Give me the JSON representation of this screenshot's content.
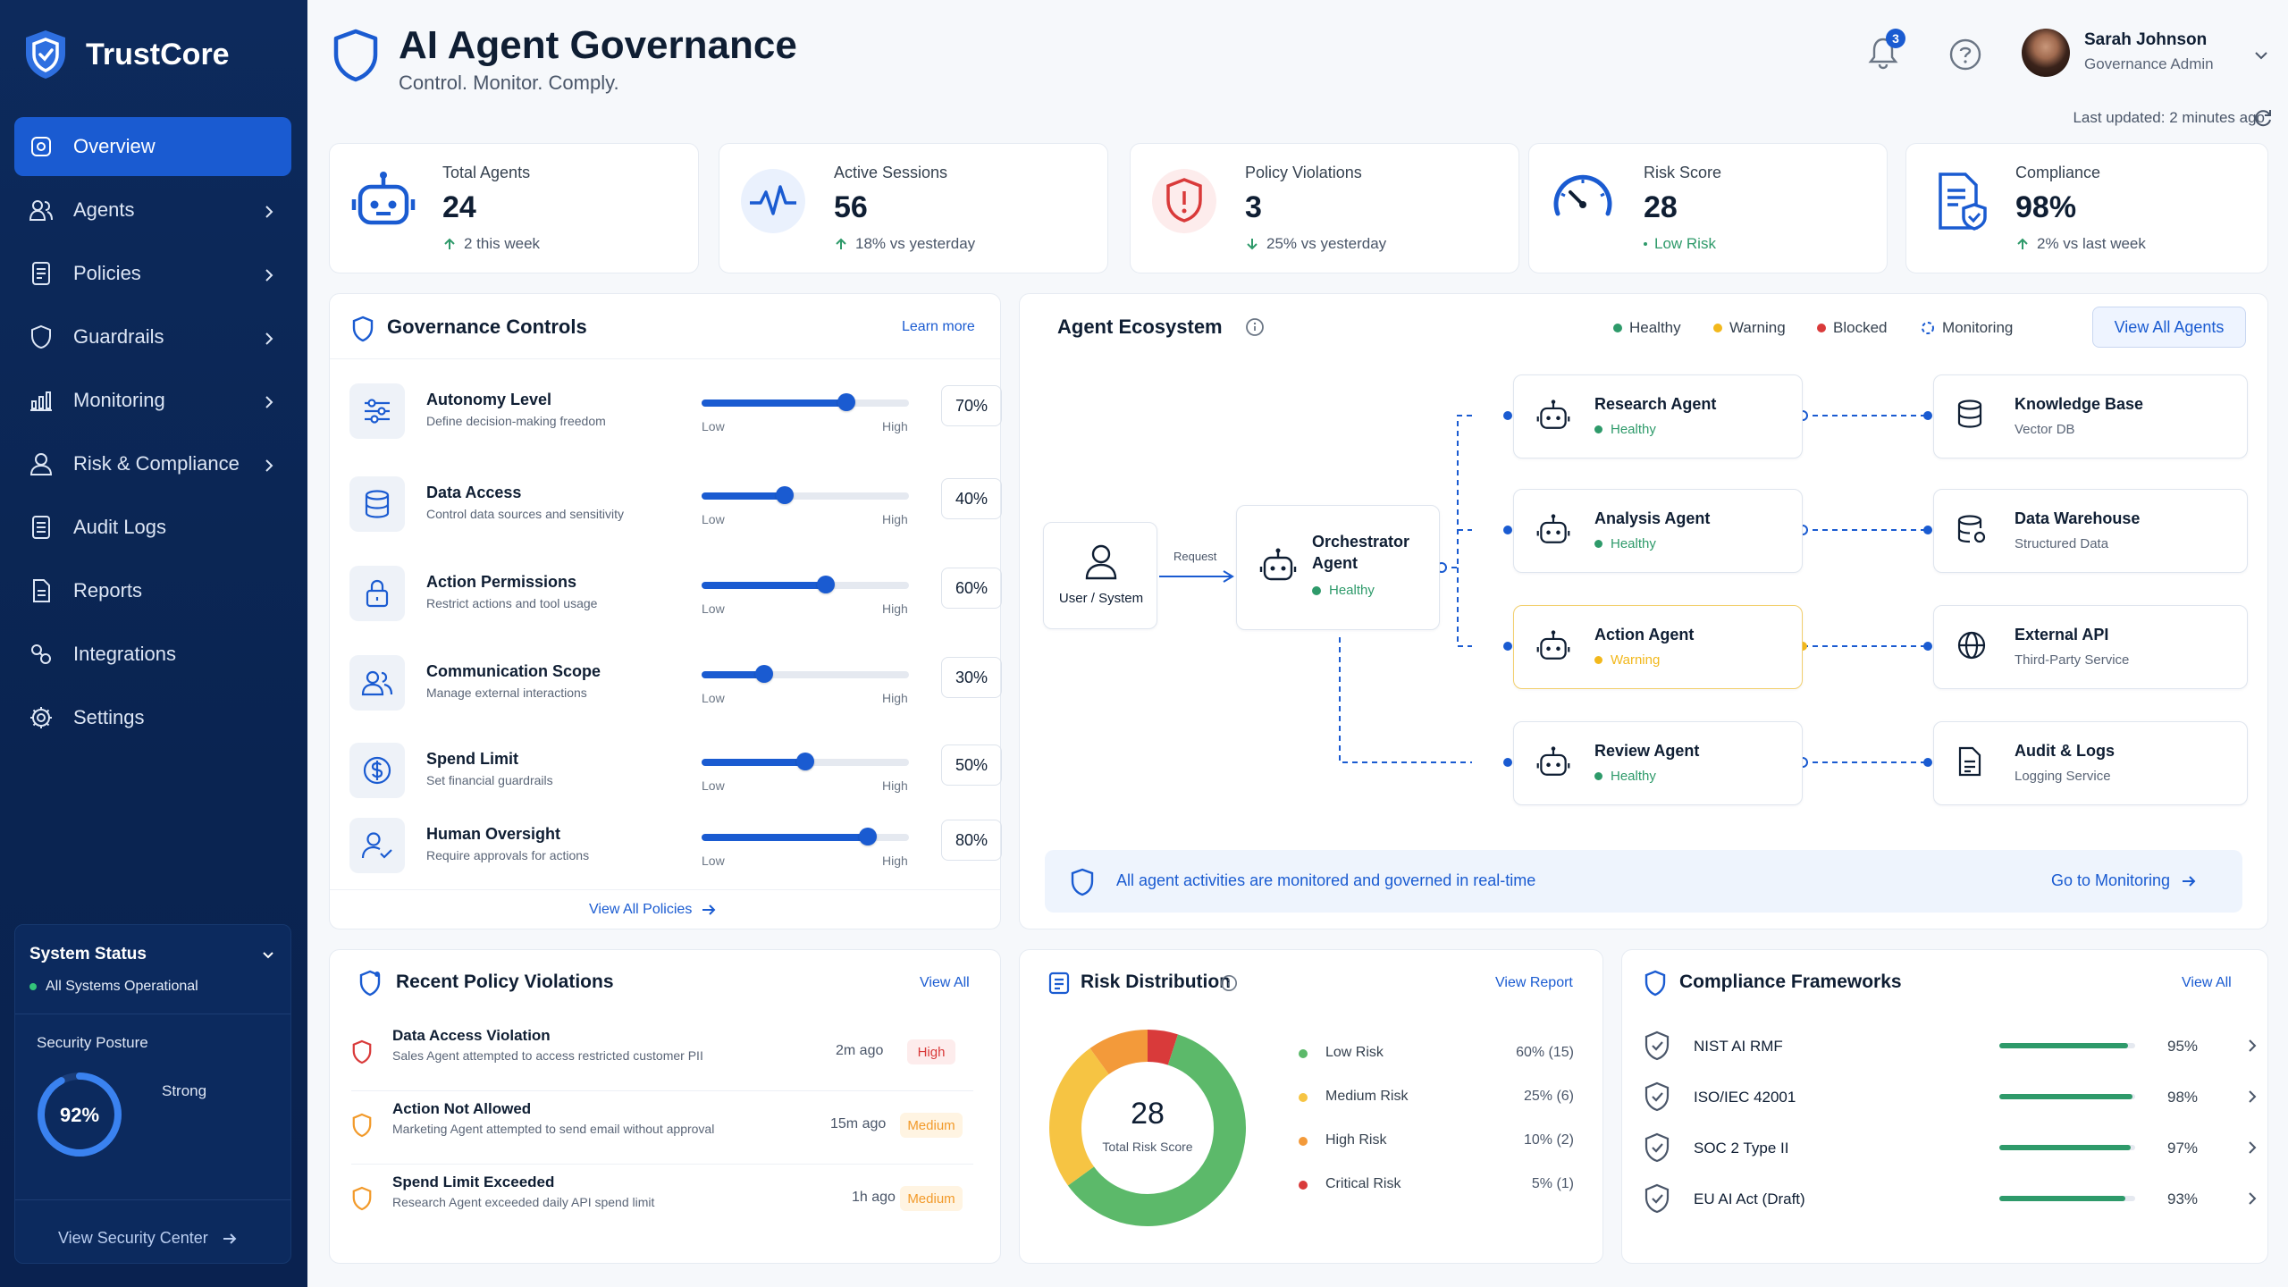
{
  "app": {
    "name": "TrustCore"
  },
  "nav": [
    {
      "label": "Overview",
      "icon": "overview-icon",
      "active": true,
      "has_children": false
    },
    {
      "label": "Agents",
      "icon": "agents-icon",
      "has_children": true
    },
    {
      "label": "Policies",
      "icon": "policies-icon",
      "has_children": true
    },
    {
      "label": "Guardrails",
      "icon": "guardrails-icon",
      "has_children": true
    },
    {
      "label": "Monitoring",
      "icon": "monitoring-icon",
      "has_children": true
    },
    {
      "label": "Risk & Compliance",
      "icon": "risk-icon",
      "has_children": true
    },
    {
      "label": "Audit Logs",
      "icon": "audit-icon",
      "has_children": false
    },
    {
      "label": "Reports",
      "icon": "reports-icon",
      "has_children": false
    },
    {
      "label": "Integrations",
      "icon": "integrations-icon",
      "has_children": false
    },
    {
      "label": "Settings",
      "icon": "settings-icon",
      "has_children": false
    }
  ],
  "system_status": {
    "title": "System Status",
    "status": "All Systems Operational",
    "posture_label": "Security Posture",
    "posture_value": "92%",
    "posture_fraction": 0.92,
    "posture_level": "Strong",
    "link": "View Security Center"
  },
  "header": {
    "title": "AI Agent Governance",
    "subtitle": "Control. Monitor. Comply.",
    "notifications": "3",
    "user_name": "Sarah Johnson",
    "user_role": "Governance Admin",
    "last_updated": "Last updated: 2 minutes ago"
  },
  "kpis": [
    {
      "label": "Total Agents",
      "value": "24",
      "trend": "2 this week",
      "dir": "up"
    },
    {
      "label": "Active Sessions",
      "value": "56",
      "trend": "18% vs yesterday",
      "dir": "up"
    },
    {
      "label": "Policy Violations",
      "value": "3",
      "trend": "25% vs yesterday",
      "dir": "down"
    },
    {
      "label": "Risk Score",
      "value": "28",
      "trend": "Low Risk",
      "dir": "none"
    },
    {
      "label": "Compliance",
      "value": "98%",
      "trend": "2% vs last week",
      "dir": "up"
    }
  ],
  "governance": {
    "title": "Governance Controls",
    "link": "Learn more",
    "low": "Low",
    "high": "High",
    "footer": "View All Policies",
    "controls": [
      {
        "name": "Autonomy Level",
        "desc": "Define decision-making freedom",
        "value": 70,
        "label": "70%",
        "icon": "sliders-icon"
      },
      {
        "name": "Data Access",
        "desc": "Control data sources and sensitivity",
        "value": 40,
        "label": "40%",
        "icon": "database-icon"
      },
      {
        "name": "Action Permissions",
        "desc": "Restrict actions and tool usage",
        "value": 60,
        "label": "60%",
        "icon": "lock-icon"
      },
      {
        "name": "Communication Scope",
        "desc": "Manage external interactions",
        "value": 30,
        "label": "30%",
        "icon": "users-icon"
      },
      {
        "name": "Spend Limit",
        "desc": "Set financial guardrails",
        "value": 50,
        "label": "50%",
        "icon": "dollar-icon"
      },
      {
        "name": "Human Oversight",
        "desc": "Require approvals for actions",
        "value": 80,
        "label": "80%",
        "icon": "user-check-icon"
      }
    ]
  },
  "ecosystem": {
    "title": "Agent Ecosystem",
    "legend": [
      "Healthy",
      "Warning",
      "Blocked",
      "Monitoring"
    ],
    "button": "View All Agents",
    "user_node": "User / System",
    "request_label": "Request",
    "orchestrator": {
      "name1": "Orchestrator",
      "name2": "Agent",
      "status": "Healthy"
    },
    "agents": [
      {
        "name": "Research Agent",
        "status": "Healthy",
        "level": "healthy"
      },
      {
        "name": "Analysis Agent",
        "status": "Healthy",
        "level": "healthy"
      },
      {
        "name": "Action Agent",
        "status": "Warning",
        "level": "warning"
      },
      {
        "name": "Review Agent",
        "status": "Healthy",
        "level": "healthy"
      }
    ],
    "resources": [
      {
        "name": "Knowledge Base",
        "sub": "Vector DB",
        "icon": "database-icon"
      },
      {
        "name": "Data Warehouse",
        "sub": "Structured Data",
        "icon": "warehouse-icon"
      },
      {
        "name": "External API",
        "sub": "Third-Party Service",
        "icon": "globe-icon"
      },
      {
        "name": "Audit & Logs",
        "sub": "Logging Service",
        "icon": "file-icon"
      }
    ],
    "banner": "All agent activities are monitored and governed in real-time",
    "banner_link": "Go to Monitoring"
  },
  "violations": {
    "title": "Recent Policy Violations",
    "link": "View All",
    "items": [
      {
        "name": "Data Access Violation",
        "desc": "Sales Agent attempted to access restricted customer PII",
        "time": "2m ago",
        "severity": "High"
      },
      {
        "name": "Action Not Allowed",
        "desc": "Marketing Agent attempted to send email without approval",
        "time": "15m ago",
        "severity": "Medium"
      },
      {
        "name": "Spend Limit Exceeded",
        "desc": "Research Agent exceeded daily API spend limit",
        "time": "1h ago",
        "severity": "Medium"
      }
    ]
  },
  "risk_distribution": {
    "title": "Risk Distribution",
    "link": "View Report",
    "center_value": "28",
    "center_label": "Total Risk Score",
    "items": [
      {
        "name": "Low Risk",
        "value": "60% (15)",
        "pct": 60,
        "color": "#5cb96a"
      },
      {
        "name": "Medium Risk",
        "value": "25% (6)",
        "pct": 25,
        "color": "#f6c443"
      },
      {
        "name": "High Risk",
        "value": "10% (2)",
        "pct": 10,
        "color": "#f39a3a"
      },
      {
        "name": "Critical Risk",
        "value": "5% (1)",
        "pct": 5,
        "color": "#d93a3a"
      }
    ]
  },
  "compliance": {
    "title": "Compliance Frameworks",
    "link": "View All",
    "items": [
      {
        "name": "NIST AI RMF",
        "value": "95%",
        "pct": 95
      },
      {
        "name": "ISO/IEC 42001",
        "value": "98%",
        "pct": 98
      },
      {
        "name": "SOC 2 Type II",
        "value": "97%",
        "pct": 97
      },
      {
        "name": "EU AI Act (Draft)",
        "value": "93%",
        "pct": 93
      }
    ]
  },
  "colors": {
    "primary": "#1a5bd1",
    "healthy": "#2e9a6a",
    "warning": "#f2b81c",
    "blocked": "#d93a3a",
    "sidebar": "#0d2a5c"
  }
}
